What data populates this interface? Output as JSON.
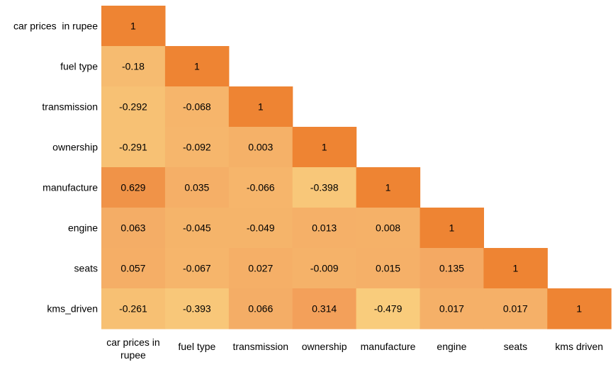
{
  "chart_data": {
    "type": "heatmap",
    "title": "",
    "xlabel": "",
    "ylabel": "",
    "triangle": "lower",
    "row_labels": [
      "car prices  in rupee",
      "fuel type",
      "transmission",
      "ownership",
      "manufacture",
      "engine",
      "seats",
      "kms_driven"
    ],
    "col_labels": [
      "car prices in rupee",
      "fuel type",
      "transmission",
      "ownership",
      "manufacture",
      "engine",
      "seats",
      "kms driven"
    ],
    "matrix": [
      [
        "1"
      ],
      [
        "-0.18",
        "1"
      ],
      [
        "-0.292",
        "-0.068",
        "1"
      ],
      [
        "-0.291",
        "-0.092",
        "0.003",
        "1"
      ],
      [
        "0.629",
        "0.035",
        "-0.066",
        "-0.398",
        "1"
      ],
      [
        "0.063",
        "-0.045",
        "-0.049",
        "0.013",
        "0.008",
        "1"
      ],
      [
        "0.057",
        "-0.067",
        "0.027",
        "-0.009",
        "0.015",
        "0.135",
        "1"
      ],
      [
        "-0.261",
        "-0.393",
        "0.066",
        "0.314",
        "-0.479",
        "0.017",
        "0.017",
        "1"
      ]
    ],
    "value_range": [
      -0.5,
      1
    ],
    "colors": {
      "low": "#f9cd7d",
      "mid": "#f3a35e",
      "high": "#ee8433",
      "text": "#000000"
    }
  }
}
